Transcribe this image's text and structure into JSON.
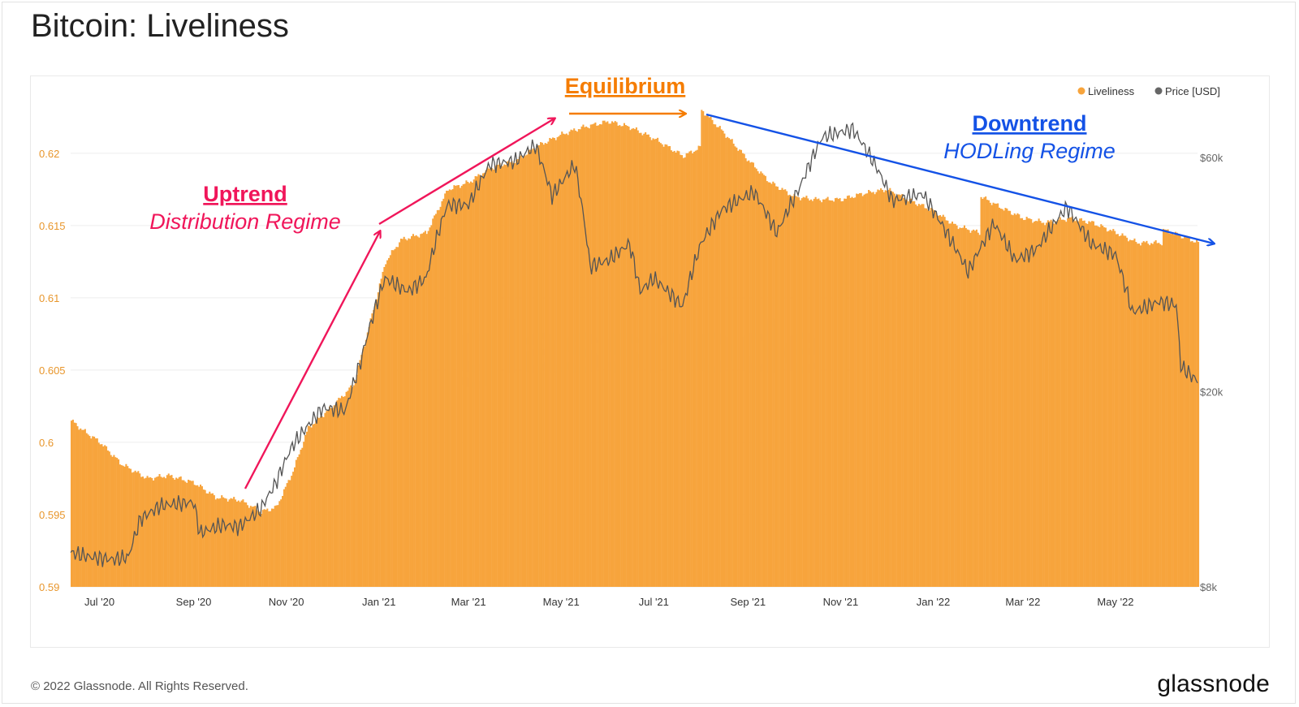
{
  "title": "Bitcoin: Liveliness",
  "footer": {
    "copyright": "© 2022 Glassnode. All Rights Reserved.",
    "logo_text": "glassnode"
  },
  "watermark": "glassnode",
  "colors": {
    "liveliness": "#f7a43c",
    "price": "#555555",
    "uptrend": "#f0165a",
    "equilibrium": "#f57c00",
    "downtrend": "#1452e6",
    "left_axis_text": "#e8962c",
    "right_axis_text": "#666666"
  },
  "annotations": {
    "uptrend": {
      "title": "Uptrend",
      "subtitle": "Distribution Regime"
    },
    "equilibrium": {
      "title": "Equilibrium"
    },
    "downtrend": {
      "title": "Downtrend",
      "subtitle": "HODLing Regime"
    }
  },
  "chart_data": {
    "type": "area",
    "x_range": [
      "2020-06-12",
      "2022-06-24"
    ],
    "x_ticks": [
      "Jul '20",
      "Sep '20",
      "Nov '20",
      "Jan '21",
      "Mar '21",
      "May '21",
      "Jul '21",
      "Sep '21",
      "Nov '21",
      "Jan '22",
      "Mar '22",
      "May '22"
    ],
    "y_left": {
      "ticks": [
        "0.59",
        "0.595",
        "0.6",
        "0.605",
        "0.61",
        "0.615",
        "0.62"
      ],
      "range": [
        0.59,
        0.6242
      ]
    },
    "y_right": {
      "scale": "log",
      "ticks": [
        "$8k",
        "$20k",
        "$60k"
      ],
      "range": [
        8000,
        81300
      ]
    },
    "legend": {
      "position": "top-right",
      "entries": [
        "Liveliness",
        "Price [USD]"
      ]
    },
    "series": [
      {
        "name": "Liveliness",
        "kind": "area",
        "axis": "left",
        "points": [
          [
            "2020-06-12",
            0.6015
          ],
          [
            "2020-06-20",
            0.6008
          ],
          [
            "2020-07-01",
            0.6
          ],
          [
            "2020-07-15",
            0.5985
          ],
          [
            "2020-08-01",
            0.5975
          ],
          [
            "2020-08-15",
            0.5977
          ],
          [
            "2020-09-01",
            0.5972
          ],
          [
            "2020-09-15",
            0.5962
          ],
          [
            "2020-10-01",
            0.596
          ],
          [
            "2020-10-15",
            0.5952
          ],
          [
            "2020-10-25",
            0.5955
          ],
          [
            "2020-11-05",
            0.598
          ],
          [
            "2020-11-15",
            0.601
          ],
          [
            "2020-12-01",
            0.6025
          ],
          [
            "2020-12-15",
            0.604
          ],
          [
            "2020-12-25",
            0.608
          ],
          [
            "2021-01-05",
            0.6125
          ],
          [
            "2021-01-15",
            0.614
          ],
          [
            "2021-02-01",
            0.6145
          ],
          [
            "2021-02-15",
            0.6175
          ],
          [
            "2021-03-01",
            0.618
          ],
          [
            "2021-03-15",
            0.619
          ],
          [
            "2021-04-01",
            0.6195
          ],
          [
            "2021-04-15",
            0.6205
          ],
          [
            "2021-05-01",
            0.6213
          ],
          [
            "2021-05-15",
            0.6218
          ],
          [
            "2021-06-01",
            0.6222
          ],
          [
            "2021-06-15",
            0.6218
          ],
          [
            "2021-07-01",
            0.621
          ],
          [
            "2021-07-20",
            0.6198
          ],
          [
            "2021-07-31",
            0.6204
          ],
          [
            "2021-08-01",
            0.623
          ],
          [
            "2021-08-15",
            0.6215
          ],
          [
            "2021-09-01",
            0.6195
          ],
          [
            "2021-09-15",
            0.618
          ],
          [
            "2021-10-01",
            0.617
          ],
          [
            "2021-10-15",
            0.6168
          ],
          [
            "2021-11-01",
            0.6168
          ],
          [
            "2021-11-15",
            0.6172
          ],
          [
            "2021-12-01",
            0.6175
          ],
          [
            "2021-12-15",
            0.6168
          ],
          [
            "2022-01-01",
            0.616
          ],
          [
            "2022-01-15",
            0.615
          ],
          [
            "2022-01-31",
            0.6145
          ],
          [
            "2022-02-01",
            0.617
          ],
          [
            "2022-02-15",
            0.6162
          ],
          [
            "2022-03-01",
            0.6155
          ],
          [
            "2022-03-15",
            0.6152
          ],
          [
            "2022-04-01",
            0.6155
          ],
          [
            "2022-04-15",
            0.6152
          ],
          [
            "2022-05-01",
            0.6145
          ],
          [
            "2022-05-15",
            0.6138
          ],
          [
            "2022-05-31",
            0.6138
          ],
          [
            "2022-06-01",
            0.6147
          ],
          [
            "2022-06-15",
            0.6142
          ],
          [
            "2022-06-24",
            0.6138
          ]
        ]
      },
      {
        "name": "Price [USD]",
        "kind": "line",
        "axis": "right",
        "points": [
          [
            "2020-06-12",
            9400
          ],
          [
            "2020-06-25",
            9200
          ],
          [
            "2020-07-10",
            9100
          ],
          [
            "2020-07-20",
            9200
          ],
          [
            "2020-07-28",
            11000
          ],
          [
            "2020-08-10",
            11700
          ],
          [
            "2020-08-20",
            11800
          ],
          [
            "2020-09-01",
            11900
          ],
          [
            "2020-09-05",
            10300
          ],
          [
            "2020-09-20",
            10700
          ],
          [
            "2020-10-01",
            10600
          ],
          [
            "2020-10-15",
            11500
          ],
          [
            "2020-10-25",
            13000
          ],
          [
            "2020-11-05",
            15500
          ],
          [
            "2020-11-25",
            18500
          ],
          [
            "2020-12-10",
            18300
          ],
          [
            "2020-12-20",
            23000
          ],
          [
            "2021-01-05",
            34000
          ],
          [
            "2021-01-20",
            32000
          ],
          [
            "2021-02-01",
            34000
          ],
          [
            "2021-02-15",
            48000
          ],
          [
            "2021-03-01",
            48000
          ],
          [
            "2021-03-15",
            58000
          ],
          [
            "2021-04-01",
            59000
          ],
          [
            "2021-04-14",
            63500
          ],
          [
            "2021-04-25",
            50000
          ],
          [
            "2021-05-10",
            58000
          ],
          [
            "2021-05-20",
            36000
          ],
          [
            "2021-06-01",
            37000
          ],
          [
            "2021-06-15",
            40000
          ],
          [
            "2021-06-22",
            32000
          ],
          [
            "2021-07-01",
            34000
          ],
          [
            "2021-07-20",
            29800
          ],
          [
            "2021-08-01",
            40000
          ],
          [
            "2021-08-15",
            47000
          ],
          [
            "2021-09-05",
            51000
          ],
          [
            "2021-09-20",
            42000
          ],
          [
            "2021-10-05",
            52000
          ],
          [
            "2021-10-20",
            66000
          ],
          [
            "2021-11-09",
            68500
          ],
          [
            "2021-11-25",
            57000
          ],
          [
            "2021-12-05",
            49000
          ],
          [
            "2021-12-25",
            50500
          ],
          [
            "2022-01-10",
            42000
          ],
          [
            "2022-01-24",
            35000
          ],
          [
            "2022-02-10",
            44000
          ],
          [
            "2022-02-24",
            37000
          ],
          [
            "2022-03-10",
            39000
          ],
          [
            "2022-03-30",
            47500
          ],
          [
            "2022-04-15",
            40000
          ],
          [
            "2022-05-01",
            38000
          ],
          [
            "2022-05-12",
            29000
          ],
          [
            "2022-05-30",
            30500
          ],
          [
            "2022-06-10",
            30000
          ],
          [
            "2022-06-13",
            22500
          ],
          [
            "2022-06-24",
            21000
          ]
        ]
      }
    ]
  }
}
